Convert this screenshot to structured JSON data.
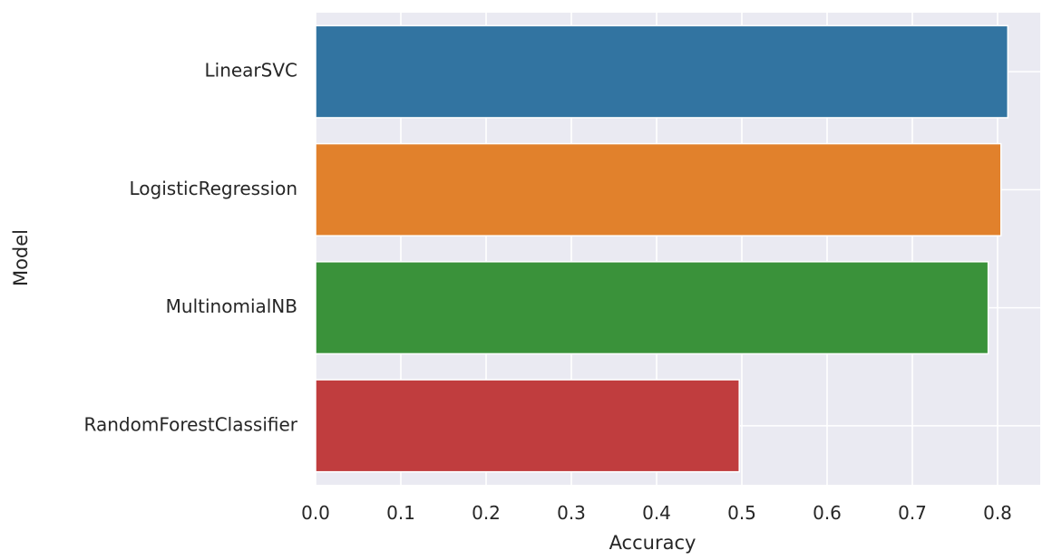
{
  "chart_data": {
    "type": "bar",
    "orientation": "horizontal",
    "categories": [
      "LinearSVC",
      "LogisticRegression",
      "MultinomialNB",
      "RandomForestClassifier"
    ],
    "values": [
      0.812,
      0.804,
      0.789,
      0.497
    ],
    "colors": [
      "#3274a1",
      "#e1812c",
      "#3a923a",
      "#c03d3e"
    ],
    "xlabel": "Accuracy",
    "ylabel": "Model",
    "xlim": [
      0.0,
      0.85
    ],
    "xticks": [
      "0.0",
      "0.1",
      "0.2",
      "0.3",
      "0.4",
      "0.5",
      "0.6",
      "0.7",
      "0.8"
    ],
    "grid": true,
    "background": "#eaeaf2",
    "gridColor": "#ffffff"
  }
}
